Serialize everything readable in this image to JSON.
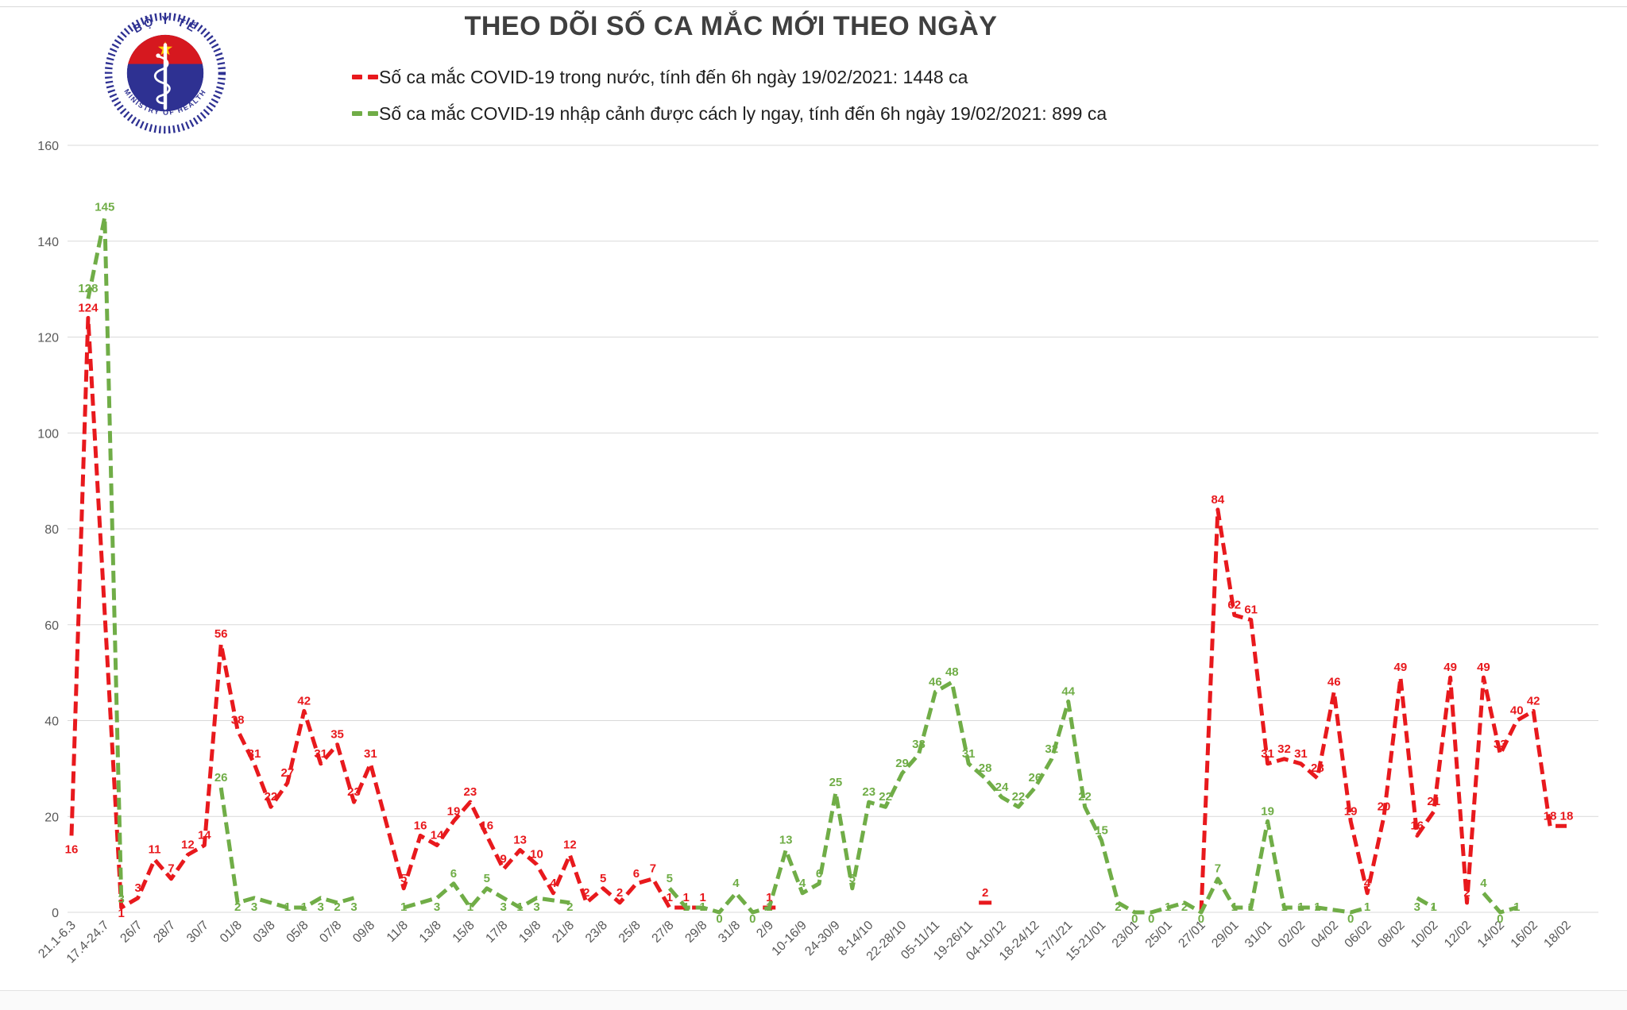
{
  "header": {
    "title": "THEO DÕI SỐ CA MẮC MỚI THEO NGÀY"
  },
  "logo": {
    "top_text": "BỘ Y TẾ",
    "bottom_text": "MINISTRY OF HEALTH",
    "ring_color": "#2e3192",
    "red_color": "#d6181f",
    "blue_color": "#2e3192",
    "star_color": "#ffcc00"
  },
  "chart_data": {
    "type": "line",
    "title": "THEO DÕI SỐ CA MẮC MỚI THEO NGÀY",
    "xlabel": "",
    "ylabel": "",
    "ylim": [
      0,
      160
    ],
    "yticks": [
      0,
      20,
      40,
      60,
      80,
      100,
      120,
      140,
      160
    ],
    "grid": true,
    "legend_position": "top-left",
    "point_count": 91,
    "x_label_interval": 2,
    "x_labels": [
      "21.1-6.3",
      "17.4-24.7",
      "26/7",
      "28/7",
      "30/7",
      "01/8",
      "03/8",
      "05/8",
      "07/8",
      "09/8",
      "11/8",
      "13/8",
      "15/8",
      "17/8",
      "19/8",
      "21/8",
      "23/8",
      "25/8",
      "27/8",
      "29/8",
      "31/8",
      "2/9",
      "10-16/9",
      "24-30/9",
      "8-14/10",
      "22-28/10",
      "05-11/11",
      "19-26/11",
      "04-10/12",
      "18-24/12",
      "1-7/1/21",
      "15-21/01",
      "23/01",
      "25/01",
      "27/01",
      "29/01",
      "31/01",
      "02/02",
      "04/02",
      "06/02",
      "08/02",
      "10/02",
      "12/02",
      "14/02",
      "16/02",
      "18/02"
    ],
    "series": [
      {
        "name": "Số ca mắc COVID-19 trong nước, tính đến 6h ngày 19/02/2021: 1448 ca",
        "color": "#e8191d",
        "points": [
          [
            0,
            16
          ],
          [
            1,
            124
          ],
          [
            3,
            1
          ],
          [
            4,
            3
          ],
          [
            5,
            11
          ],
          [
            6,
            7
          ],
          [
            7,
            12
          ],
          [
            8,
            14
          ],
          [
            9,
            56
          ],
          [
            10,
            38
          ],
          [
            11,
            31
          ],
          [
            12,
            22
          ],
          [
            13,
            27
          ],
          [
            14,
            42
          ],
          [
            15,
            31
          ],
          [
            16,
            35
          ],
          [
            17,
            23
          ],
          [
            18,
            31
          ],
          [
            20,
            5
          ],
          [
            21,
            16
          ],
          [
            22,
            14
          ],
          [
            23,
            19
          ],
          [
            24,
            23
          ],
          [
            25,
            16
          ],
          [
            26,
            9
          ],
          [
            27,
            13
          ],
          [
            28,
            10
          ],
          [
            29,
            4
          ],
          [
            30,
            12
          ],
          [
            31,
            2
          ],
          [
            32,
            5
          ],
          [
            33,
            2
          ],
          [
            34,
            6
          ],
          [
            35,
            7
          ],
          [
            36,
            1
          ],
          [
            37,
            1
          ],
          [
            38,
            1
          ],
          [
            42,
            1
          ],
          [
            55,
            2
          ],
          [
            68,
            0
          ],
          [
            69,
            84
          ],
          [
            70,
            62
          ],
          [
            71,
            61
          ],
          [
            72,
            31
          ],
          [
            73,
            32
          ],
          [
            74,
            31
          ],
          [
            75,
            28
          ],
          [
            76,
            46
          ],
          [
            77,
            19
          ],
          [
            78,
            4
          ],
          [
            79,
            20
          ],
          [
            80,
            49
          ],
          [
            81,
            16
          ],
          [
            82,
            21
          ],
          [
            83,
            49
          ],
          [
            84,
            2
          ],
          [
            85,
            49
          ],
          [
            86,
            33
          ],
          [
            87,
            40
          ],
          [
            88,
            42
          ],
          [
            89,
            18
          ],
          [
            90,
            18
          ]
        ]
      },
      {
        "name": "Số ca mắc COVID-19 nhập cảnh được cách ly ngay, tính đến 6h ngày 19/02/2021: 899 ca",
        "color": "#70ad47",
        "points": [
          [
            1,
            128
          ],
          [
            2,
            145
          ],
          [
            3,
            3
          ],
          [
            9,
            26
          ],
          [
            10,
            2
          ],
          [
            11,
            3
          ],
          [
            13,
            1
          ],
          [
            14,
            1
          ],
          [
            15,
            3
          ],
          [
            16,
            2
          ],
          [
            17,
            3
          ],
          [
            20,
            1
          ],
          [
            22,
            3
          ],
          [
            23,
            6
          ],
          [
            24,
            1
          ],
          [
            25,
            5
          ],
          [
            26,
            3
          ],
          [
            27,
            1
          ],
          [
            28,
            3
          ],
          [
            30,
            2
          ],
          [
            36,
            5
          ],
          [
            37,
            1
          ],
          [
            38,
            1
          ],
          [
            39,
            0
          ],
          [
            40,
            4
          ],
          [
            41,
            0
          ],
          [
            42,
            1
          ],
          [
            43,
            13
          ],
          [
            44,
            4
          ],
          [
            45,
            6
          ],
          [
            46,
            25
          ],
          [
            47,
            5
          ],
          [
            48,
            23
          ],
          [
            49,
            22
          ],
          [
            50,
            29
          ],
          [
            51,
            33
          ],
          [
            52,
            46
          ],
          [
            53,
            48
          ],
          [
            54,
            31
          ],
          [
            55,
            28
          ],
          [
            56,
            24
          ],
          [
            57,
            22
          ],
          [
            58,
            26
          ],
          [
            59,
            32
          ],
          [
            60,
            44
          ],
          [
            61,
            22
          ],
          [
            62,
            15
          ],
          [
            63,
            2
          ],
          [
            64,
            0
          ],
          [
            65,
            0
          ],
          [
            66,
            1
          ],
          [
            67,
            2
          ],
          [
            68,
            0
          ],
          [
            69,
            7
          ],
          [
            70,
            1
          ],
          [
            71,
            1
          ],
          [
            72,
            19
          ],
          [
            73,
            1
          ],
          [
            74,
            1
          ],
          [
            75,
            1
          ],
          [
            77,
            0
          ],
          [
            78,
            1
          ],
          [
            81,
            3
          ],
          [
            82,
            1
          ],
          [
            85,
            4
          ],
          [
            86,
            0
          ],
          [
            87,
            1
          ]
        ]
      }
    ]
  }
}
